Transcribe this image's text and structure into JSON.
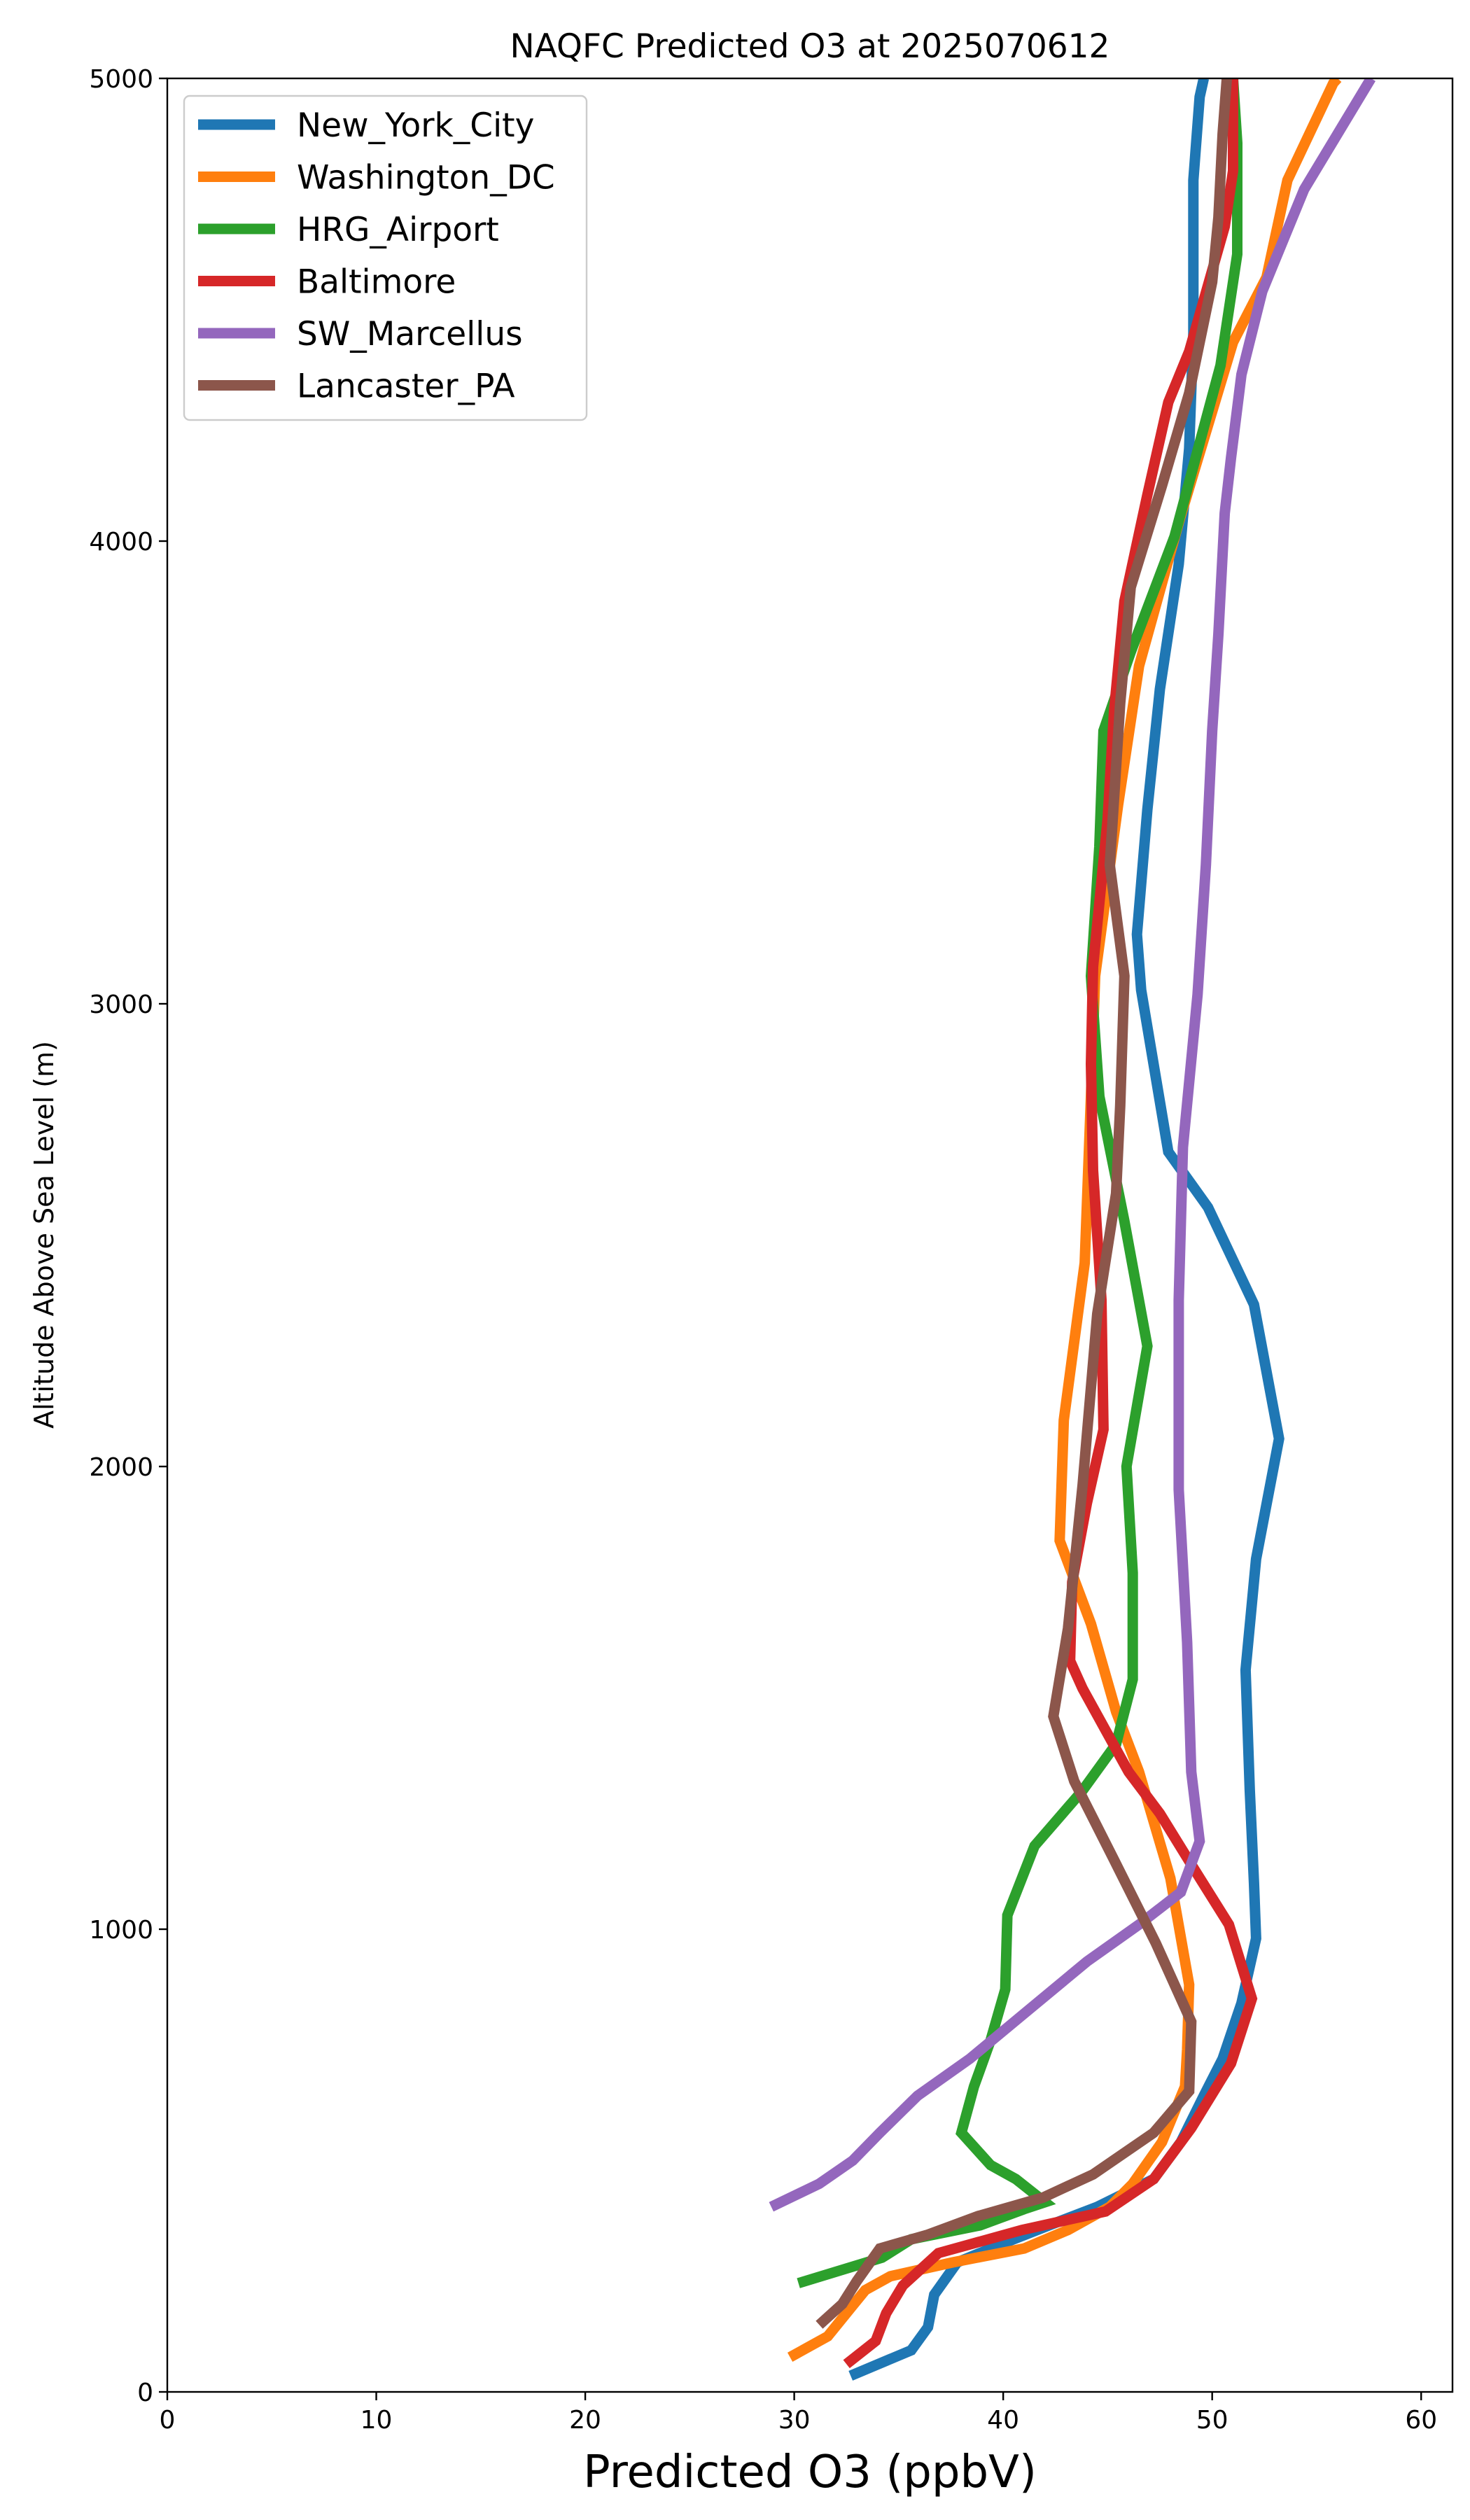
{
  "chart_data": {
    "type": "line",
    "title": "NAQFC Predicted O3 at 2025070612",
    "xlabel": "Predicted O3 (ppbV)",
    "ylabel": "Altitude Above Sea Level (m)",
    "xlim": [
      0,
      61.5
    ],
    "ylim": [
      0,
      5000
    ],
    "xticks": [
      0,
      10,
      20,
      30,
      40,
      50,
      60
    ],
    "yticks": [
      0,
      1000,
      2000,
      3000,
      4000,
      5000
    ],
    "grid": false,
    "legend_position": "top-left",
    "series": [
      {
        "name": "New_York_City",
        "color": "#1f77b4",
        "points": [
          [
            32.7,
            35
          ],
          [
            35.6,
            90
          ],
          [
            36.4,
            140
          ],
          [
            36.7,
            210
          ],
          [
            37.8,
            280
          ],
          [
            40.5,
            330
          ],
          [
            42.2,
            360
          ],
          [
            44.5,
            400
          ],
          [
            47.2,
            460
          ],
          [
            48.5,
            540
          ],
          [
            49.6,
            640
          ],
          [
            50.5,
            720
          ],
          [
            51.4,
            840
          ],
          [
            52.1,
            980
          ],
          [
            52.0,
            1100
          ],
          [
            51.8,
            1300
          ],
          [
            51.6,
            1560
          ],
          [
            52.1,
            1800
          ],
          [
            53.2,
            2060
          ],
          [
            52.0,
            2350
          ],
          [
            49.8,
            2560
          ],
          [
            47.9,
            2680
          ],
          [
            46.6,
            3030
          ],
          [
            46.4,
            3150
          ],
          [
            46.9,
            3420
          ],
          [
            47.5,
            3680
          ],
          [
            48.4,
            3950
          ],
          [
            48.9,
            4200
          ],
          [
            49.1,
            4450
          ],
          [
            49.1,
            4780
          ],
          [
            49.4,
            4960
          ],
          [
            49.6,
            5000
          ]
        ]
      },
      {
        "name": "Washington_DC",
        "color": "#ff7f0e",
        "points": [
          [
            29.8,
            75
          ],
          [
            31.6,
            120
          ],
          [
            32.5,
            170
          ],
          [
            33.4,
            220
          ],
          [
            34.6,
            250
          ],
          [
            37.6,
            280
          ],
          [
            41.0,
            310
          ],
          [
            43.1,
            350
          ],
          [
            45.1,
            400
          ],
          [
            46.2,
            450
          ],
          [
            47.6,
            540
          ],
          [
            48.7,
            660
          ],
          [
            48.8,
            740
          ],
          [
            48.9,
            880
          ],
          [
            48.0,
            1110
          ],
          [
            46.5,
            1340
          ],
          [
            45.4,
            1470
          ],
          [
            44.2,
            1660
          ],
          [
            42.7,
            1840
          ],
          [
            42.9,
            2100
          ],
          [
            43.9,
            2440
          ],
          [
            44.2,
            2800
          ],
          [
            44.4,
            3060
          ],
          [
            45.5,
            3430
          ],
          [
            46.5,
            3730
          ],
          [
            48.4,
            4040
          ],
          [
            51.0,
            4430
          ],
          [
            52.6,
            4570
          ],
          [
            53.6,
            4780
          ],
          [
            55.8,
            4990
          ],
          [
            56.0,
            5000
          ]
        ]
      },
      {
        "name": "HRG_Airport",
        "color": "#2ca02c",
        "points": [
          [
            30.2,
            235
          ],
          [
            34.2,
            290
          ],
          [
            35.6,
            330
          ],
          [
            38.9,
            360
          ],
          [
            41.0,
            395
          ],
          [
            42.0,
            410
          ],
          [
            40.6,
            460
          ],
          [
            39.4,
            490
          ],
          [
            38.0,
            560
          ],
          [
            38.6,
            660
          ],
          [
            39.4,
            760
          ],
          [
            40.1,
            870
          ],
          [
            40.2,
            1030
          ],
          [
            41.5,
            1180
          ],
          [
            43.8,
            1300
          ],
          [
            45.4,
            1400
          ],
          [
            46.2,
            1540
          ],
          [
            46.2,
            1770
          ],
          [
            45.9,
            2000
          ],
          [
            46.9,
            2260
          ],
          [
            45.8,
            2530
          ],
          [
            44.6,
            2800
          ],
          [
            44.2,
            3060
          ],
          [
            44.6,
            3340
          ],
          [
            44.8,
            3590
          ],
          [
            46.1,
            3760
          ],
          [
            48.2,
            4010
          ],
          [
            50.4,
            4380
          ],
          [
            51.2,
            4620
          ],
          [
            51.2,
            4860
          ],
          [
            51.0,
            5000
          ]
        ]
      },
      {
        "name": "Baltimore",
        "color": "#d62728",
        "points": [
          [
            32.5,
            60
          ],
          [
            33.9,
            110
          ],
          [
            34.4,
            170
          ],
          [
            35.2,
            230
          ],
          [
            36.9,
            300
          ],
          [
            40.9,
            350
          ],
          [
            44.9,
            390
          ],
          [
            47.2,
            460
          ],
          [
            49.0,
            570
          ],
          [
            50.9,
            710
          ],
          [
            51.9,
            850
          ],
          [
            50.8,
            1010
          ],
          [
            49.0,
            1140
          ],
          [
            47.5,
            1250
          ],
          [
            46.0,
            1340
          ],
          [
            44.9,
            1430
          ],
          [
            43.8,
            1520
          ],
          [
            43.2,
            1580
          ],
          [
            43.3,
            1750
          ],
          [
            44.0,
            1920
          ],
          [
            44.8,
            2080
          ],
          [
            44.7,
            2360
          ],
          [
            44.3,
            2640
          ],
          [
            44.2,
            2870
          ],
          [
            44.3,
            3080
          ],
          [
            45.0,
            3400
          ],
          [
            45.3,
            3630
          ],
          [
            45.8,
            3870
          ],
          [
            46.9,
            4100
          ],
          [
            47.9,
            4300
          ],
          [
            48.9,
            4410
          ],
          [
            50.6,
            4680
          ],
          [
            51.0,
            4800
          ],
          [
            51.0,
            5000
          ]
        ]
      },
      {
        "name": "SW_Marcellus",
        "color": "#9467bd",
        "points": [
          [
            28.9,
            400
          ],
          [
            31.2,
            450
          ],
          [
            32.8,
            500
          ],
          [
            34.1,
            560
          ],
          [
            35.9,
            640
          ],
          [
            38.4,
            720
          ],
          [
            40.8,
            810
          ],
          [
            44.0,
            930
          ],
          [
            46.5,
            1010
          ],
          [
            48.5,
            1080
          ],
          [
            49.4,
            1190
          ],
          [
            49.0,
            1340
          ],
          [
            48.8,
            1620
          ],
          [
            48.4,
            1950
          ],
          [
            48.4,
            2360
          ],
          [
            48.6,
            2690
          ],
          [
            49.3,
            3020
          ],
          [
            49.7,
            3300
          ],
          [
            50.0,
            3590
          ],
          [
            50.3,
            3800
          ],
          [
            50.6,
            4060
          ],
          [
            50.9,
            4180
          ],
          [
            51.4,
            4360
          ],
          [
            52.4,
            4540
          ],
          [
            54.4,
            4760
          ],
          [
            57.6,
            5000
          ]
        ]
      },
      {
        "name": "Lancaster_PA",
        "color": "#8c564b",
        "points": [
          [
            31.2,
            145
          ],
          [
            32.3,
            190
          ],
          [
            33.0,
            240
          ],
          [
            34.1,
            310
          ],
          [
            36.4,
            340
          ],
          [
            38.8,
            380
          ],
          [
            41.9,
            420
          ],
          [
            44.3,
            470
          ],
          [
            47.2,
            560
          ],
          [
            48.9,
            650
          ],
          [
            49.0,
            800
          ],
          [
            47.3,
            970
          ],
          [
            45.3,
            1150
          ],
          [
            43.4,
            1320
          ],
          [
            42.4,
            1460
          ],
          [
            43.1,
            1650
          ],
          [
            43.8,
            1960
          ],
          [
            44.5,
            2330
          ],
          [
            45.4,
            2590
          ],
          [
            45.6,
            2780
          ],
          [
            45.8,
            3060
          ],
          [
            45.1,
            3300
          ],
          [
            45.6,
            3650
          ],
          [
            46.1,
            3900
          ],
          [
            47.6,
            4120
          ],
          [
            48.9,
            4320
          ],
          [
            50.0,
            4560
          ],
          [
            50.3,
            4700
          ],
          [
            50.5,
            4880
          ],
          [
            50.7,
            5000
          ]
        ]
      }
    ]
  }
}
